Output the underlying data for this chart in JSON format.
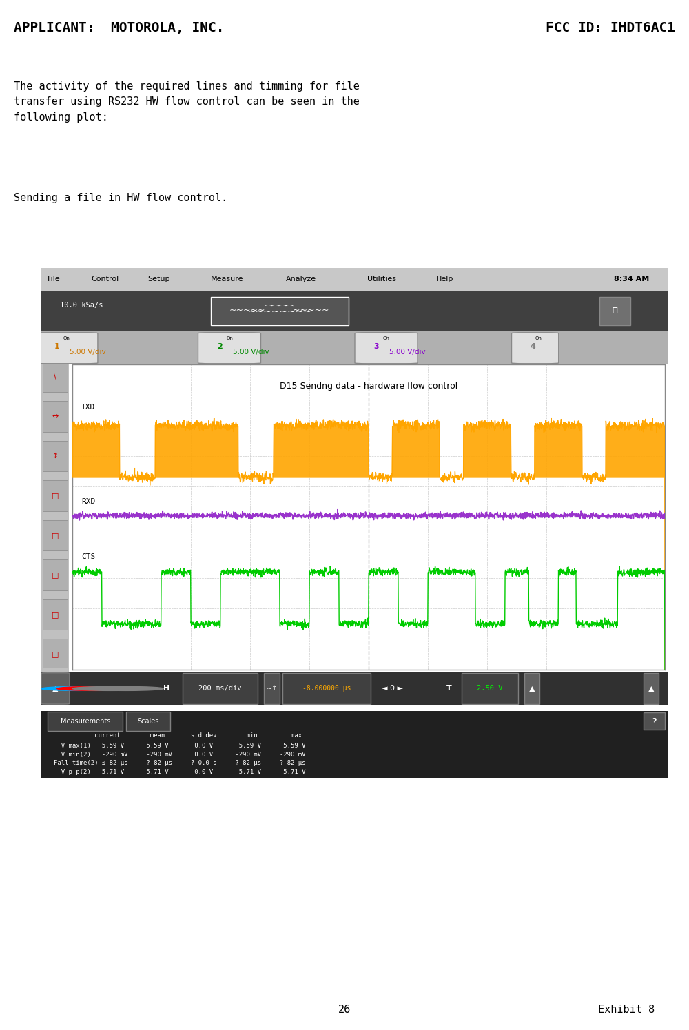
{
  "page_title_left": "APPLICANT:  MOTOROLA, INC.",
  "page_title_right": "FCC ID: IHDT6AC1",
  "body_text": "The activity of the required lines and timming for file\ntransfer using RS232 HW flow control can be seen in the\nfollowing plot:",
  "subtitle": "Sending a file in HW flow control.",
  "page_number": "26",
  "exhibit": "Exhibit 8",
  "scope_title": "D15 Sendng data - hardware flow control",
  "scope_time_label": "8:34 AM",
  "scope_sample_rate": "10.0 kSa/s",
  "scope_hdiv": "200 ms/div",
  "scope_trigger": "-8.000000 μs",
  "scope_threshold": "2.50 V",
  "menu_items": [
    "File",
    "Control",
    "Setup",
    "Measure",
    "Analyze",
    "Utilities",
    "Help"
  ],
  "ch1_label": "5.00 V/div",
  "ch2_label": "5.00 V/div",
  "ch3_label": "5.00 V/div",
  "ch4_label": "On",
  "txd_color": "#FFA500",
  "rxd_color": "#9933CC",
  "cts_color": "#00CC00",
  "scope_bg": "#F0F0F0",
  "scope_plot_bg": "#FFFFFF",
  "scope_header_bg": "#404040",
  "scope_toolbar_bg": "#C0C0C0",
  "scope_menu_bg": "#C8C8C8",
  "scope_bottom_bg": "#303030",
  "scope_measurements_bg": "#202020",
  "grid_color": "#CCCCCC",
  "measurement_text": "           current        mean       std dev        min         max\n  V max(1)   5.59 V      5.59 V       0.0 V       5.59 V      5.59 V\n  V min(2)   -290 mV     -290 mV      0.0 V      -290 mV     -290 mV\nFall time(2) ≤ 82 μs     ? 82 μs     ? 0.0 s     ? 82 μs     ? 82 μs\n  V p-p(2)   5.71 V      5.71 V       0.0 V       5.71 V      5.71 V"
}
